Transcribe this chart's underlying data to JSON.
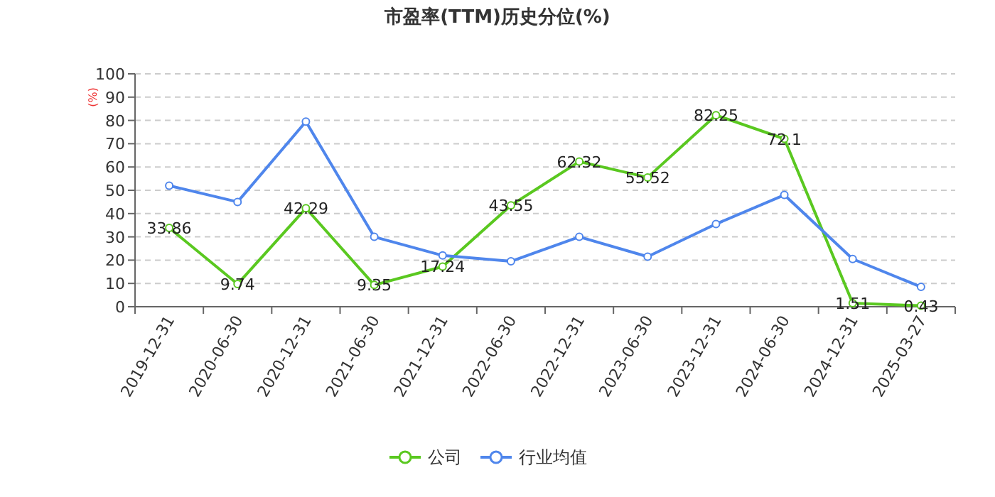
{
  "chart_data": {
    "type": "line",
    "title": "市盈率(TTM)历史分位(%)",
    "ylabel": "(%)",
    "categories": [
      "2019-12-31",
      "2020-06-30",
      "2020-12-31",
      "2021-06-30",
      "2021-12-31",
      "2022-06-30",
      "2022-12-31",
      "2023-06-30",
      "2023-12-31",
      "2024-06-30",
      "2024-12-31",
      "2025-03-27"
    ],
    "series": [
      {
        "name": "公司",
        "color": "#5ac820",
        "values": [
          33.86,
          9.74,
          42.29,
          9.35,
          17.24,
          43.55,
          62.32,
          55.52,
          82.25,
          72.1,
          1.51,
          0.43
        ],
        "value_labels": [
          "33.86",
          "9.74",
          "42.29",
          "9.35",
          "17.24",
          "43.55",
          "62.32",
          "55.52",
          "82.25",
          "72.1",
          "1.51",
          "0.43"
        ]
      },
      {
        "name": "行业均值",
        "color": "#4f86ec",
        "values": [
          52,
          45,
          79.5,
          30,
          22,
          19.5,
          30,
          21.5,
          35.5,
          48,
          20.5,
          8.5
        ]
      }
    ],
    "ylim": [
      0,
      100
    ],
    "yticks": [
      0,
      10,
      20,
      30,
      40,
      50,
      60,
      70,
      80,
      90,
      100
    ],
    "grid": "y",
    "legend": "bottom",
    "marker": "circle",
    "line_style": "solid"
  }
}
